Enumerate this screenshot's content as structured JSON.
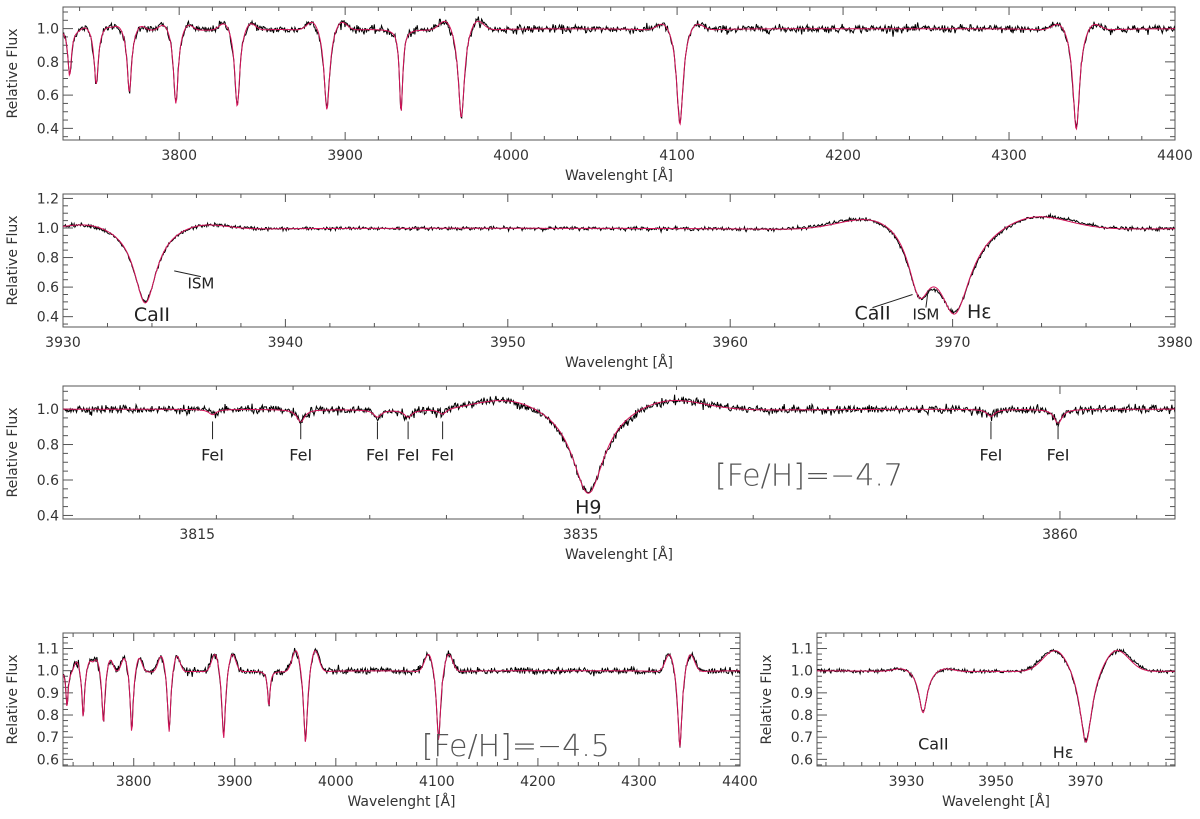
{
  "chart_data": [
    {
      "type": "line",
      "xlabel": "Wavelenght [Å]",
      "ylabel": "Relative Flux",
      "xlim": [
        3730,
        4400
      ],
      "ylim": [
        0.33,
        1.13
      ],
      "xticks": [
        3800,
        3900,
        4000,
        4100,
        4200,
        4300,
        4400
      ],
      "yticks": [
        0.4,
        0.6,
        0.8,
        1.0
      ],
      "ytick_decimals": 1,
      "grid": false,
      "baseline": 1.0,
      "lines": [
        {
          "center": 3734,
          "depth": 0.28,
          "width": 1.3,
          "wing_amp": 0
        },
        {
          "center": 3750,
          "depth": 0.33,
          "width": 1.5,
          "wing_amp": 0.03
        },
        {
          "center": 3770,
          "depth": 0.38,
          "width": 1.6,
          "wing_amp": 0.04
        },
        {
          "center": 3798,
          "depth": 0.45,
          "width": 1.7,
          "wing_amp": 0.05
        },
        {
          "center": 3835,
          "depth": 0.47,
          "width": 1.8,
          "wing_amp": 0.06
        },
        {
          "center": 3889,
          "depth": 0.49,
          "width": 2.0,
          "wing_amp": 0.07
        },
        {
          "center": 3933.7,
          "depth": 0.5,
          "width": 1.2,
          "wing_amp": 0.0
        },
        {
          "center": 3970,
          "depth": 0.54,
          "width": 2.2,
          "wing_amp": 0.08
        },
        {
          "center": 4101.7,
          "depth": 0.58,
          "width": 2.3,
          "wing_amp": 0.06
        },
        {
          "center": 4340.5,
          "depth": 0.61,
          "width": 2.4,
          "wing_amp": 0.06
        }
      ],
      "noise": 0.012,
      "series": [
        {
          "color": "#000000"
        },
        {
          "color": "#d4145a"
        }
      ],
      "annotations": []
    },
    {
      "type": "line",
      "xlabel": "Wavelenght [Å]",
      "ylabel": "Relative Flux",
      "xlim": [
        3930,
        3980
      ],
      "ylim": [
        0.33,
        1.23
      ],
      "xticks": [
        3930,
        3940,
        3950,
        3960,
        3970,
        3980
      ],
      "yticks": [
        0.4,
        0.6,
        0.8,
        1.0,
        1.2
      ],
      "ytick_decimals": 1,
      "grid": false,
      "baseline": 1.0,
      "lines": [
        {
          "center": 3933.7,
          "depth": 0.51,
          "width": 0.6,
          "wing_amp": 0.05
        },
        {
          "center": 3968.5,
          "depth": 0.4,
          "width": 0.6,
          "wing_amp": 0.0
        },
        {
          "center": 3970.1,
          "depth": 0.54,
          "width": 0.85,
          "wing_amp": 0.12
        }
      ],
      "noise": 0.006,
      "series": [
        {
          "color": "#000000"
        },
        {
          "color": "#d4145a"
        }
      ],
      "annotations": [
        {
          "text": "CaII",
          "x": 3934.0,
          "y": 0.37,
          "size": "big",
          "anchor": "middle"
        },
        {
          "text": "ISM",
          "x": 3936.2,
          "y": 0.59,
          "size": "small",
          "anchor": "middle",
          "line_to": [
            3935.0,
            0.71
          ]
        },
        {
          "text": "CaII",
          "x": 3966.4,
          "y": 0.38,
          "size": "big",
          "anchor": "middle",
          "line_to": [
            3968.2,
            0.55
          ]
        },
        {
          "text": "ISM",
          "x": 3968.8,
          "y": 0.38,
          "size": "small",
          "anchor": "middle",
          "line_to": [
            3968.9,
            0.58
          ]
        },
        {
          "text": "Hε",
          "x": 3971.2,
          "y": 0.39,
          "size": "big",
          "anchor": "middle"
        }
      ]
    },
    {
      "type": "line",
      "xlabel": "Wavelenght [Å]",
      "ylabel": "Relative Flux",
      "xlim": [
        3808,
        3866
      ],
      "ylim": [
        0.38,
        1.13
      ],
      "xticks": [
        3815,
        3835,
        3860
      ],
      "yticks": [
        0.4,
        0.6,
        0.8,
        1.0
      ],
      "ytick_decimals": 1,
      "grid": false,
      "baseline": 1.0,
      "lines": [
        {
          "center": 3835.4,
          "depth": 0.48,
          "width": 1.0,
          "wing_amp": 0.08
        },
        {
          "center": 3815.8,
          "depth": 0.03,
          "width": 0.25,
          "wing_amp": 0
        },
        {
          "center": 3820.4,
          "depth": 0.07,
          "width": 0.25,
          "wing_amp": 0
        },
        {
          "center": 3824.4,
          "depth": 0.04,
          "width": 0.25,
          "wing_amp": 0
        },
        {
          "center": 3826.0,
          "depth": 0.04,
          "width": 0.25,
          "wing_amp": 0
        },
        {
          "center": 3827.8,
          "depth": 0.03,
          "width": 0.25,
          "wing_amp": 0
        },
        {
          "center": 3856.4,
          "depth": 0.04,
          "width": 0.25,
          "wing_amp": 0
        },
        {
          "center": 3859.9,
          "depth": 0.08,
          "width": 0.25,
          "wing_amp": 0
        }
      ],
      "noise": 0.012,
      "series": [
        {
          "color": "#000000"
        },
        {
          "color": "#d4145a"
        }
      ],
      "annotations": [
        {
          "text": "FeI",
          "x": 3815.8,
          "y": 0.71,
          "size": "mid",
          "anchor": "middle",
          "tick_from": 0.83,
          "tick_to": 0.93
        },
        {
          "text": "FeI",
          "x": 3820.4,
          "y": 0.71,
          "size": "mid",
          "anchor": "middle",
          "tick_from": 0.83,
          "tick_to": 0.93
        },
        {
          "text": "FeI",
          "x": 3824.4,
          "y": 0.71,
          "size": "mid",
          "anchor": "middle",
          "tick_from": 0.83,
          "tick_to": 0.93
        },
        {
          "text": "FeI",
          "x": 3826.0,
          "y": 0.71,
          "size": "mid",
          "anchor": "middle",
          "tick_from": 0.83,
          "tick_to": 0.93
        },
        {
          "text": "FeI",
          "x": 3827.8,
          "y": 0.71,
          "size": "mid",
          "anchor": "middle",
          "tick_from": 0.83,
          "tick_to": 0.93
        },
        {
          "text": "FeI",
          "x": 3856.4,
          "y": 0.71,
          "size": "mid",
          "anchor": "middle",
          "tick_from": 0.83,
          "tick_to": 0.93
        },
        {
          "text": "FeI",
          "x": 3859.9,
          "y": 0.71,
          "size": "mid",
          "anchor": "middle",
          "tick_from": 0.83,
          "tick_to": 0.93
        },
        {
          "text": "H9",
          "x": 3835.4,
          "y": 0.41,
          "size": "big",
          "anchor": "middle"
        },
        {
          "text": "[Fe/H]=−4.7",
          "x": 3842.0,
          "y": 0.57,
          "size": "huge",
          "anchor": "start"
        }
      ]
    },
    {
      "type": "line",
      "xlabel": "Wavelenght [Å]",
      "ylabel": "Relative Flux",
      "xlim": [
        3730,
        4400
      ],
      "ylim": [
        0.57,
        1.17
      ],
      "xticks": [
        3800,
        3900,
        4000,
        4100,
        4200,
        4300,
        4400
      ],
      "yticks": [
        0.6,
        0.7,
        0.8,
        0.9,
        1.0,
        1.1
      ],
      "ytick_decimals": 1,
      "grid": false,
      "baseline": 1.0,
      "lines": [
        {
          "center": 3734,
          "depth": 0.16,
          "width": 1.3,
          "wing_amp": 0
        },
        {
          "center": 3750,
          "depth": 0.21,
          "width": 1.5,
          "wing_amp": 0.06
        },
        {
          "center": 3770,
          "depth": 0.24,
          "width": 1.6,
          "wing_amp": 0.07
        },
        {
          "center": 3798,
          "depth": 0.28,
          "width": 1.7,
          "wing_amp": 0.08
        },
        {
          "center": 3835,
          "depth": 0.28,
          "width": 1.8,
          "wing_amp": 0.09
        },
        {
          "center": 3889,
          "depth": 0.31,
          "width": 2.0,
          "wing_amp": 0.1
        },
        {
          "center": 3933.7,
          "depth": 0.16,
          "width": 1.4,
          "wing_amp": 0.0
        },
        {
          "center": 3970,
          "depth": 0.33,
          "width": 2.2,
          "wing_amp": 0.12
        },
        {
          "center": 4101.7,
          "depth": 0.32,
          "width": 2.3,
          "wing_amp": 0.1
        },
        {
          "center": 4340.5,
          "depth": 0.35,
          "width": 2.4,
          "wing_amp": 0.1
        }
      ],
      "noise": 0.008,
      "series": [
        {
          "color": "#000000"
        },
        {
          "color": "#d4145a"
        }
      ],
      "annotations": [
        {
          "text": "[Fe/H]=−4.5",
          "x": 4085,
          "y": 0.615,
          "size": "huge",
          "anchor": "start"
        }
      ]
    },
    {
      "type": "line",
      "xlabel": "Wavelenght [Å]",
      "ylabel": "Relative Flux",
      "xlim": [
        3910,
        3990
      ],
      "ylim": [
        0.57,
        1.17
      ],
      "xticks": [
        3930,
        3950,
        3970
      ],
      "yticks": [
        0.6,
        0.7,
        0.8,
        0.9,
        1.0,
        1.1
      ],
      "ytick_decimals": 1,
      "grid": false,
      "baseline": 1.0,
      "lines": [
        {
          "center": 3933.7,
          "depth": 0.19,
          "width": 1.1,
          "wing_amp": 0.02
        },
        {
          "center": 3970.1,
          "depth": 0.33,
          "width": 1.6,
          "wing_amp": 0.12
        }
      ],
      "noise": 0.004,
      "series": [
        {
          "color": "#000000"
        },
        {
          "color": "#d4145a"
        }
      ],
      "annotations": [
        {
          "text": "CaII",
          "x": 3936,
          "y": 0.645,
          "size": "mid",
          "anchor": "middle"
        },
        {
          "text": "Hε",
          "x": 3965,
          "y": 0.605,
          "size": "mid",
          "anchor": "middle"
        }
      ]
    }
  ]
}
